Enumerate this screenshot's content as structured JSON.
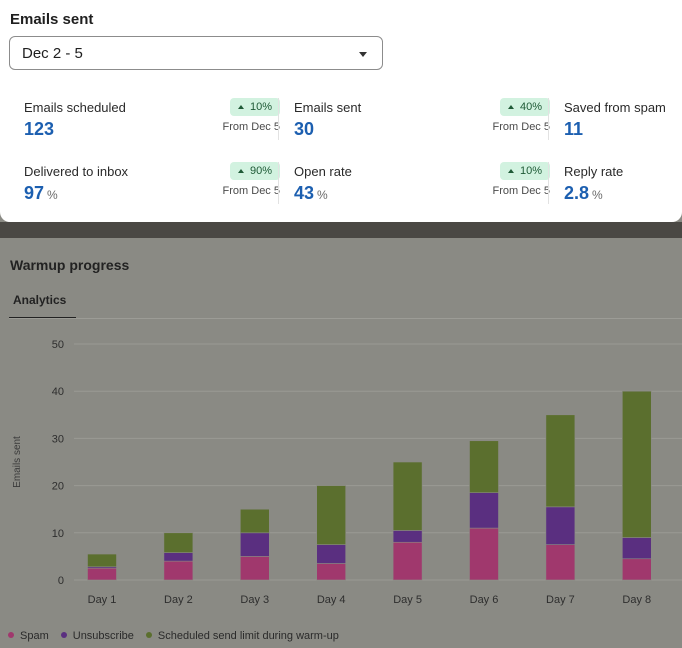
{
  "summary": {
    "title": "Emails sent",
    "date_range": "Dec 2 - 5",
    "stats": [
      {
        "label": "Emails scheduled",
        "value": "123",
        "unit": "",
        "change": "10%",
        "from": "From Dec 5"
      },
      {
        "label": "Emails sent",
        "value": "30",
        "unit": "",
        "change": "40%",
        "from": "From Dec 5"
      },
      {
        "label": "Saved from spam",
        "value": "11",
        "unit": "",
        "change": "",
        "from": ""
      },
      {
        "label": "Delivered to inbox",
        "value": "97",
        "unit": "%",
        "change": "90%",
        "from": "From Dec 5"
      },
      {
        "label": "Open rate",
        "value": "43",
        "unit": "%",
        "change": "10%",
        "from": "From Dec 5"
      },
      {
        "label": "Reply rate",
        "value": "2.8",
        "unit": "%",
        "change": "",
        "from": ""
      }
    ]
  },
  "warmup": {
    "title": "Warmup progress",
    "tab": "Analytics"
  },
  "chart_data": {
    "type": "bar",
    "stacked": true,
    "categories": [
      "Day 1",
      "Day 2",
      "Day 3",
      "Day 4",
      "Day 5",
      "Day 6",
      "Day 7",
      "Day 8"
    ],
    "series": [
      {
        "name": "Spam",
        "color": "#a0386d",
        "values": [
          2.5,
          4,
          5,
          3.5,
          8,
          11,
          7.5,
          4.5
        ]
      },
      {
        "name": "Unsubscribe",
        "color": "#5a2f80",
        "values": [
          0.3,
          1.8,
          5,
          4,
          2.5,
          7.5,
          8,
          4.5
        ]
      },
      {
        "name": "Scheduled send limit during warm-up",
        "color": "#5b6f2e",
        "values": [
          2.7,
          4.2,
          5,
          12.5,
          14.5,
          11,
          19.5,
          31
        ]
      }
    ],
    "ylabel": "Emails sent",
    "yticks": [
      0,
      10,
      20,
      30,
      40,
      50
    ],
    "ylim": [
      0,
      50
    ],
    "grid": true,
    "legend_position": "bottom-left"
  }
}
